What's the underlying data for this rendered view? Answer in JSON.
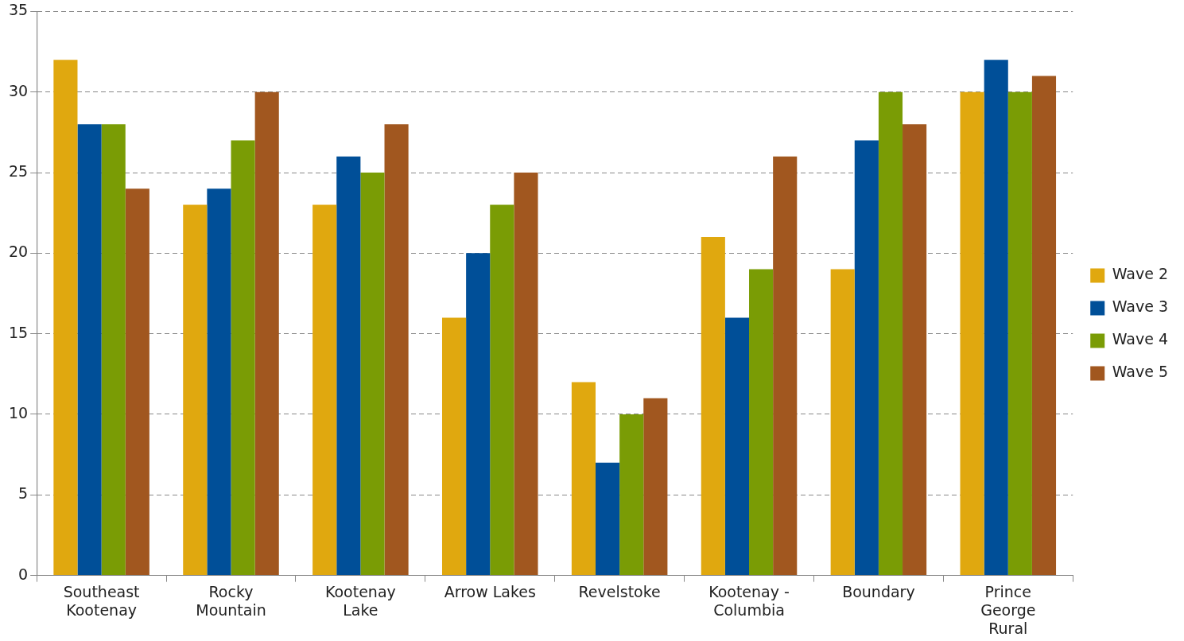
{
  "chart_data": {
    "type": "bar",
    "categories": [
      "Southeast Kootenay",
      "Rocky Mountain",
      "Kootenay Lake",
      "Arrow Lakes",
      "Revelstoke",
      "Kootenay - Columbia",
      "Boundary",
      "Prince George Rural"
    ],
    "series": [
      {
        "name": "Wave 2",
        "color": "#e0a80f",
        "values": [
          32,
          23,
          23,
          16,
          12,
          21,
          19,
          30
        ]
      },
      {
        "name": "Wave 3",
        "color": "#004f98",
        "values": [
          28,
          24,
          26,
          20,
          7,
          16,
          27,
          32
        ]
      },
      {
        "name": "Wave 4",
        "color": "#7a9c05",
        "values": [
          28,
          27,
          25,
          23,
          10,
          19,
          30,
          30
        ]
      },
      {
        "name": "Wave 5",
        "color": "#a1571f",
        "values": [
          24,
          30,
          28,
          25,
          11,
          26,
          28,
          31
        ]
      }
    ],
    "ylim": [
      0,
      35
    ],
    "yticks": [
      0,
      5,
      10,
      15,
      20,
      25,
      30,
      35
    ],
    "grid": "y",
    "legend": "right"
  }
}
